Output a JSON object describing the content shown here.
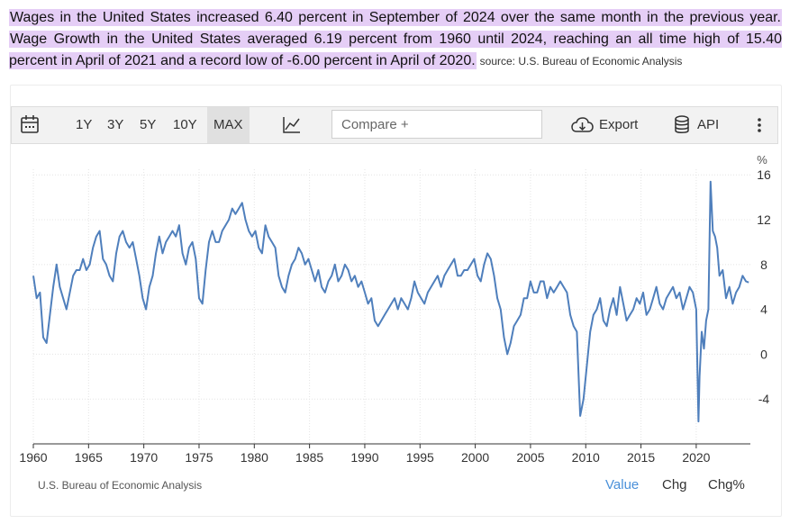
{
  "intro": {
    "sentence1": "Wages in the United States increased 6.40 percent in September of 2024 over the same month in the previous year.",
    "sentence2": "Wage Growth in the United States averaged 6.19 percent from 1960 until 2024, reaching an all time high of 15.40 percent in April of 2021 and a record low of -6.00 percent in April of 2020.",
    "source": "source: U.S. Bureau of Economic Analysis"
  },
  "toolbar": {
    "ranges": [
      "1Y",
      "3Y",
      "5Y",
      "10Y",
      "MAX"
    ],
    "active_range": "MAX",
    "compare_placeholder": "Compare +",
    "export_label": "Export",
    "api_label": "API"
  },
  "footer": {
    "source": "U.S. Bureau of Economic Analysis",
    "tabs": [
      "Value",
      "Chg",
      "Chg%"
    ],
    "active_tab": "Value"
  },
  "colors": {
    "line": "#4f7fbc",
    "highlight": "#e5cef6",
    "active_tab": "#4a90d9"
  },
  "chart_data": {
    "type": "line",
    "unit_label": "%",
    "x_ticks": [
      "1960",
      "1965",
      "1970",
      "1975",
      "1980",
      "1985",
      "1990",
      "1995",
      "2000",
      "2005",
      "2010",
      "2015",
      "2020"
    ],
    "y_ticks": [
      "16",
      "12",
      "8",
      "4",
      "0",
      "-4"
    ],
    "xlim": [
      1960,
      2024.9
    ],
    "ylim": [
      -8,
      16.5
    ],
    "grid": true,
    "series": [
      {
        "x": [
          1960.0,
          1960.3,
          1960.6,
          1960.9,
          1961.2,
          1961.5,
          1961.8,
          1962.1,
          1962.4,
          1962.7,
          1963.0,
          1963.3,
          1963.6,
          1963.9,
          1964.2,
          1964.5,
          1964.8,
          1965.1,
          1965.4,
          1965.7,
          1966.0,
          1966.3,
          1966.6,
          1966.9,
          1967.2,
          1967.5,
          1967.8,
          1968.1,
          1968.4,
          1968.7,
          1969.0,
          1969.3,
          1969.6,
          1969.9,
          1970.2,
          1970.5,
          1970.8,
          1971.1,
          1971.4,
          1971.7,
          1972.0,
          1972.3,
          1972.6,
          1972.9,
          1973.2,
          1973.5,
          1973.8,
          1974.1,
          1974.4,
          1974.7,
          1975.0,
          1975.3,
          1975.6,
          1975.9,
          1976.2,
          1976.5,
          1976.8,
          1977.1,
          1977.4,
          1977.7,
          1978.0,
          1978.3,
          1978.6,
          1978.9,
          1979.2,
          1979.5,
          1979.8,
          1980.1,
          1980.4,
          1980.7,
          1981.0,
          1981.3,
          1981.6,
          1981.9,
          1982.2,
          1982.5,
          1982.8,
          1983.1,
          1983.4,
          1983.7,
          1984.0,
          1984.3,
          1984.6,
          1984.9,
          1985.2,
          1985.5,
          1985.8,
          1986.1,
          1986.4,
          1986.7,
          1987.0,
          1987.3,
          1987.6,
          1987.9,
          1988.2,
          1988.5,
          1988.8,
          1989.1,
          1989.4,
          1989.7,
          1990.0,
          1990.3,
          1990.6,
          1990.9,
          1991.2,
          1991.5,
          1991.8,
          1992.1,
          1992.4,
          1992.7,
          1993.0,
          1993.3,
          1993.6,
          1993.9,
          1994.2,
          1994.5,
          1994.8,
          1995.1,
          1995.4,
          1995.7,
          1996.0,
          1996.3,
          1996.6,
          1996.9,
          1997.2,
          1997.5,
          1997.8,
          1998.1,
          1998.4,
          1998.7,
          1999.0,
          1999.3,
          1999.6,
          1999.9,
          2000.2,
          2000.5,
          2000.8,
          2001.1,
          2001.4,
          2001.7,
          2002.0,
          2002.3,
          2002.6,
          2002.9,
          2003.2,
          2003.5,
          2003.8,
          2004.1,
          2004.4,
          2004.7,
          2005.0,
          2005.3,
          2005.6,
          2005.9,
          2006.2,
          2006.5,
          2006.8,
          2007.1,
          2007.4,
          2007.7,
          2008.0,
          2008.3,
          2008.6,
          2008.9,
          2009.2,
          2009.5,
          2009.8,
          2010.1,
          2010.4,
          2010.7,
          2011.0,
          2011.3,
          2011.6,
          2011.9,
          2012.2,
          2012.5,
          2012.8,
          2013.1,
          2013.4,
          2013.7,
          2014.0,
          2014.3,
          2014.6,
          2014.9,
          2015.2,
          2015.5,
          2015.8,
          2016.1,
          2016.4,
          2016.7,
          2017.0,
          2017.3,
          2017.6,
          2017.9,
          2018.2,
          2018.5,
          2018.8,
          2019.1,
          2019.4,
          2019.7,
          2020.0,
          2020.2,
          2020.3,
          2020.5,
          2020.7,
          2020.9,
          2021.1,
          2021.3,
          2021.5,
          2021.7,
          2021.9,
          2022.1,
          2022.4,
          2022.7,
          2023.0,
          2023.3,
          2023.6,
          2023.9,
          2024.2,
          2024.5,
          2024.75
        ],
        "y": [
          7.0,
          5.0,
          5.5,
          1.5,
          1.0,
          3.5,
          6.0,
          8.0,
          6.0,
          5.0,
          4.0,
          5.5,
          7.0,
          7.5,
          7.5,
          8.5,
          7.5,
          8.0,
          9.5,
          10.5,
          11.0,
          8.5,
          8.0,
          7.0,
          6.5,
          9.0,
          10.5,
          11.0,
          10.0,
          9.5,
          10.0,
          8.5,
          7.0,
          5.0,
          4.0,
          6.0,
          7.0,
          9.0,
          10.5,
          9.0,
          10.0,
          10.5,
          11.0,
          10.5,
          11.5,
          9.0,
          8.0,
          9.5,
          10.0,
          8.5,
          5.0,
          4.5,
          7.5,
          10.0,
          11.0,
          10.0,
          10.0,
          11.0,
          11.5,
          12.0,
          13.0,
          12.5,
          13.0,
          13.5,
          12.0,
          11.0,
          10.5,
          11.0,
          9.5,
          9.0,
          11.5,
          10.5,
          10.0,
          9.5,
          7.0,
          6.0,
          5.5,
          7.0,
          8.0,
          8.5,
          9.5,
          9.0,
          8.0,
          8.5,
          7.5,
          6.5,
          7.5,
          6.0,
          5.5,
          6.5,
          7.0,
          8.0,
          6.5,
          7.0,
          8.0,
          7.5,
          6.5,
          7.0,
          6.0,
          6.5,
          5.5,
          4.5,
          5.0,
          3.0,
          2.5,
          3.0,
          3.5,
          4.0,
          4.5,
          5.0,
          4.0,
          5.0,
          4.5,
          4.0,
          5.0,
          6.5,
          5.5,
          5.0,
          4.5,
          5.5,
          6.0,
          6.5,
          7.0,
          6.0,
          7.0,
          7.5,
          8.0,
          8.5,
          7.0,
          7.0,
          7.5,
          7.5,
          8.0,
          8.5,
          7.0,
          6.5,
          8.0,
          9.0,
          8.5,
          7.0,
          5.0,
          4.0,
          1.5,
          0.0,
          1.0,
          2.5,
          3.0,
          3.5,
          5.0,
          5.0,
          6.5,
          5.5,
          5.5,
          6.5,
          6.5,
          5.0,
          6.0,
          5.5,
          6.0,
          6.5,
          6.0,
          5.5,
          3.5,
          2.5,
          2.0,
          -5.5,
          -4.0,
          -1.0,
          2.0,
          3.5,
          4.0,
          5.0,
          3.0,
          2.5,
          4.0,
          5.0,
          3.5,
          6.0,
          4.5,
          3.0,
          3.5,
          4.0,
          5.0,
          4.5,
          5.5,
          3.5,
          4.0,
          5.0,
          6.0,
          4.5,
          4.0,
          5.0,
          5.5,
          6.0,
          5.0,
          5.5,
          4.0,
          5.0,
          6.0,
          5.5,
          4.0,
          -6.0,
          -2.0,
          2.0,
          0.5,
          3.0,
          4.0,
          15.4,
          11.0,
          10.5,
          9.5,
          7.0,
          7.5,
          5.0,
          6.0,
          4.5,
          5.5,
          6.0,
          7.0,
          6.5,
          6.4
        ]
      }
    ]
  }
}
